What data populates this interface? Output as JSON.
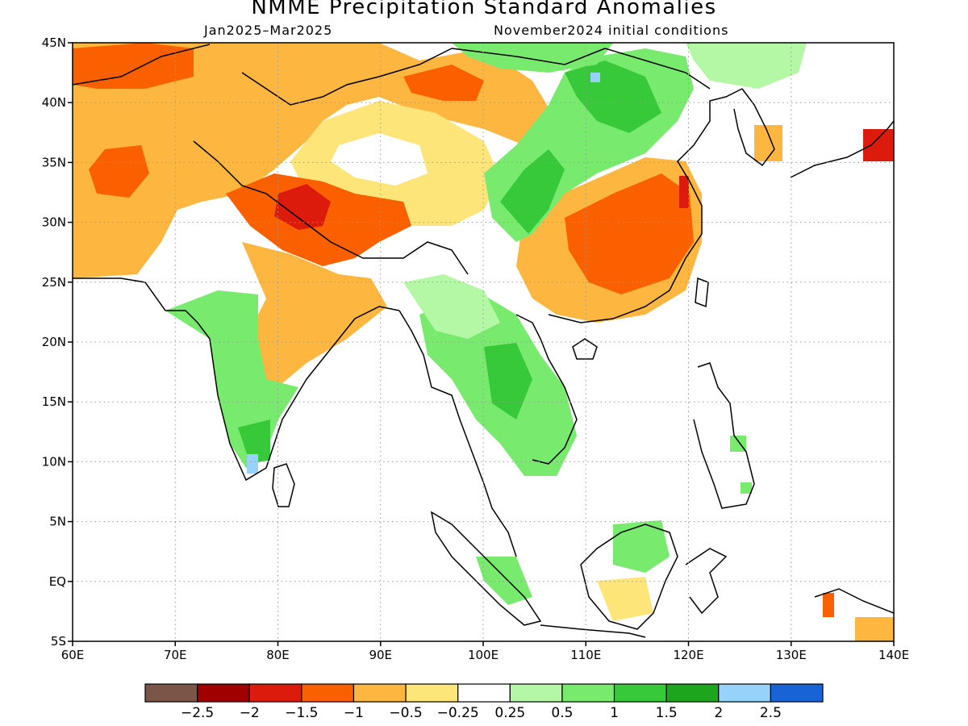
{
  "header": {
    "title": "NMME Precipitation Standard Anomalies",
    "period": "Jan2025–Mar2025",
    "initial_conditions": "November2024 initial conditions"
  },
  "map": {
    "lon_range": [
      60,
      140
    ],
    "lat_range": [
      -5,
      45
    ],
    "lon_ticks": [
      {
        "value": 60,
        "label": "60E"
      },
      {
        "value": 70,
        "label": "70E"
      },
      {
        "value": 80,
        "label": "80E"
      },
      {
        "value": 90,
        "label": "90E"
      },
      {
        "value": 100,
        "label": "100E"
      },
      {
        "value": 110,
        "label": "110E"
      },
      {
        "value": 120,
        "label": "120E"
      },
      {
        "value": 130,
        "label": "130E"
      },
      {
        "value": 140,
        "label": "140E"
      }
    ],
    "lat_ticks": [
      {
        "value": 45,
        "label": "45N"
      },
      {
        "value": 40,
        "label": "40N"
      },
      {
        "value": 35,
        "label": "35N"
      },
      {
        "value": 30,
        "label": "30N"
      },
      {
        "value": 25,
        "label": "25N"
      },
      {
        "value": 20,
        "label": "20N"
      },
      {
        "value": 15,
        "label": "15N"
      },
      {
        "value": 10,
        "label": "10N"
      },
      {
        "value": 5,
        "label": "5N"
      },
      {
        "value": 0,
        "label": "EQ"
      },
      {
        "value": -5,
        "label": "5S"
      }
    ],
    "grid": true
  },
  "legend": {
    "colors": [
      "#7a5548",
      "#a00000",
      "#dd1b0c",
      "#fa6000",
      "#fdb640",
      "#fde57a",
      "#ffffff",
      "#b4f7a4",
      "#78ea6e",
      "#37c93a",
      "#1ea51e",
      "#96d2fa",
      "#1864d6"
    ],
    "labels": [
      "−2.5",
      "−2",
      "−1.5",
      "−1",
      "−0.5",
      "−0.25",
      "0.25",
      "0.5",
      "1",
      "1.5",
      "2",
      "2.5"
    ]
  }
}
